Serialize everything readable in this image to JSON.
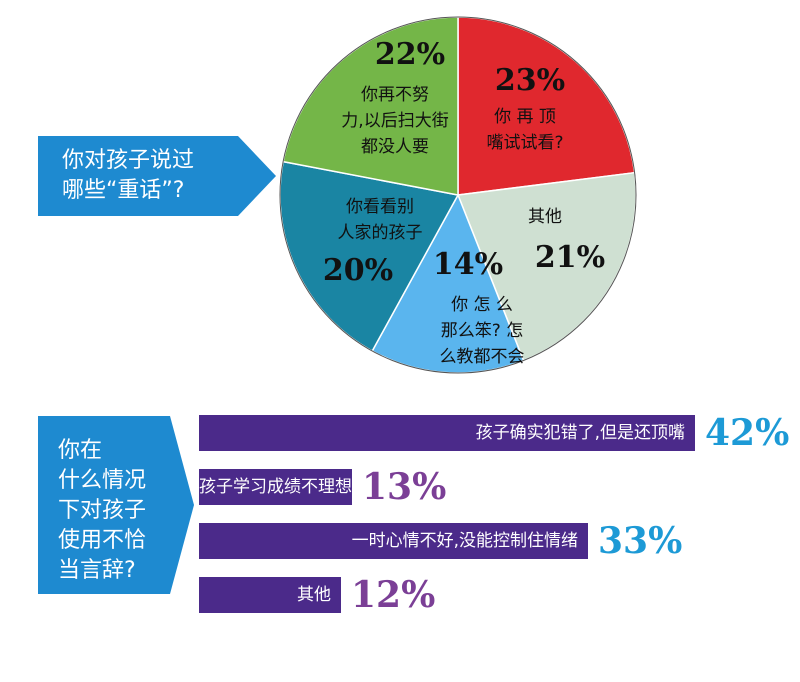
{
  "chart_data": [
    {
      "type": "pie",
      "title": "你对孩子说过哪些“重话”?",
      "title_lines": [
        "你对孩子说过",
        "哪些“重话”?"
      ],
      "slices": [
        {
          "pct_label": "23%",
          "value": 23,
          "label_lines": [
            "你 再 顶",
            "嘴试试看?"
          ],
          "color": "#e0282e"
        },
        {
          "pct_label": "21%",
          "value": 21,
          "label_lines": [
            "其他"
          ],
          "color": "#cfe0d2"
        },
        {
          "pct_label": "14%",
          "value": 14,
          "label_lines": [
            "你 怎 么",
            "那么笨? 怎",
            "么教都不会"
          ],
          "color": "#5ab5ee"
        },
        {
          "pct_label": "20%",
          "value": 20,
          "label_lines": [
            "你看看别",
            "人家的孩子"
          ],
          "color": "#1a85a3"
        },
        {
          "pct_label": "22%",
          "value": 22,
          "label_lines": [
            "你再不努",
            "力,以后扫大街",
            "都没人要"
          ],
          "color": "#74b648"
        }
      ]
    },
    {
      "type": "bar",
      "orientation": "horizontal",
      "title": "你在什么情况下对孩子使用不恰当言辞?",
      "title_lines": [
        "你在",
        "什么情况",
        "下对孩子",
        "使用不恰",
        "当言辞?"
      ],
      "categories": [
        "孩子确实犯错了,但是还顶嘴",
        "孩子学习成绩不理想",
        "一时心情不好,没能控制住情绪",
        "其他"
      ],
      "values": [
        42,
        13,
        33,
        12
      ],
      "value_labels": [
        "42%",
        "13%",
        "33%",
        "12%"
      ],
      "value_label_colors": [
        "#1d9ad6",
        "#7b3f96",
        "#1d9ad6",
        "#7b3f96"
      ],
      "bar_color": "#4b2a8a"
    }
  ],
  "colors": {
    "callout": "#1e8ad0",
    "bar": "#4b2a8a"
  }
}
